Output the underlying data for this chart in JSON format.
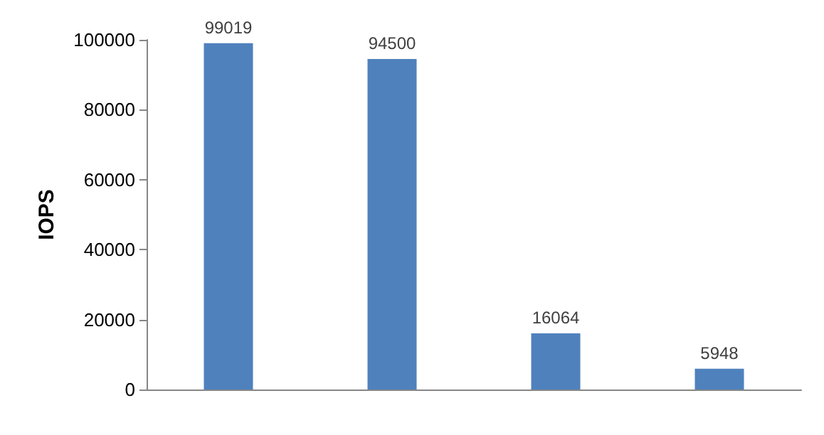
{
  "chart_data": {
    "type": "bar",
    "ylabel": "IOPS",
    "categories": [
      null,
      null,
      null,
      null
    ],
    "values": [
      99019,
      94500,
      16064,
      5948
    ],
    "color": "#4f81bd",
    "data_labels": true,
    "ylim": [
      0,
      100000
    ],
    "yticks": [
      0,
      20000,
      40000,
      60000,
      80000,
      100000
    ],
    "grid": false
  }
}
